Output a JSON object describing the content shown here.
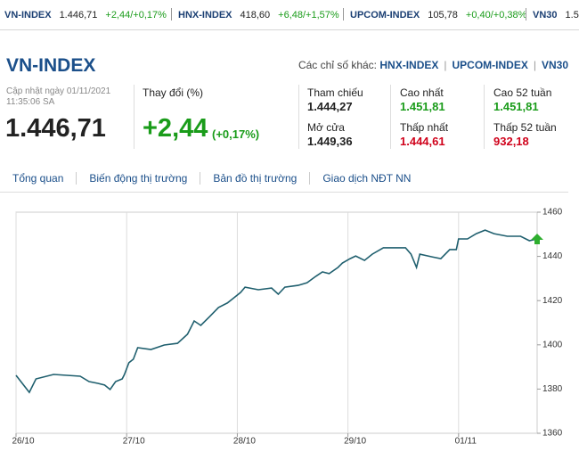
{
  "ticker": [
    {
      "name": "VN-INDEX",
      "value": "1.446,71",
      "change": "+2,44/+0,17%"
    },
    {
      "name": "HNX-INDEX",
      "value": "418,60",
      "change": "+6,48/+1,57%"
    },
    {
      "name": "UPCOM-INDEX",
      "value": "105,78",
      "change": "+0,40/+0,38%"
    },
    {
      "name": "VN30",
      "value": "1.5"
    }
  ],
  "header": {
    "title": "VN-INDEX",
    "other_label": "Các chỉ số khác:",
    "links": [
      "HNX-INDEX",
      "UPCOM-INDEX",
      "VN30"
    ]
  },
  "summary": {
    "updated": "Cập nhật ngày 01/11/2021",
    "time": "11:35:06 SA",
    "price": "1.446,71",
    "change_label": "Thay đổi (%)",
    "change": "+2,44",
    "change_pct": "(+0,17%)"
  },
  "stats": [
    {
      "label": "Tham chiếu",
      "value": "1.444,27",
      "color": "#222222"
    },
    {
      "label": "Mở cửa",
      "value": "1.449,36",
      "color": "#222222"
    },
    {
      "label": "Cao nhất",
      "value": "1.451,81",
      "color": "#1a9c1a"
    },
    {
      "label": "Thấp nhất",
      "value": "1.444,61",
      "color": "#d0021b"
    },
    {
      "label": "Cao 52 tuần",
      "value": "1.451,81",
      "color": "#1a9c1a"
    },
    {
      "label": "Thấp 52 tuần",
      "value": "932,18",
      "color": "#d0021b"
    }
  ],
  "tabs": [
    "Tổng quan",
    "Biến động thị trường",
    "Bản đồ thị trường",
    "Giao dịch NĐT NN"
  ],
  "chart_data": {
    "type": "line",
    "x": [
      0,
      0.12,
      0.18,
      0.34,
      0.58,
      0.66,
      0.74,
      0.8,
      0.85,
      0.9,
      0.96,
      0.98,
      1.02,
      1.06,
      1.1,
      1.22,
      1.34,
      1.46,
      1.55,
      1.61,
      1.67,
      1.75,
      1.83,
      1.91,
      1.96,
      2.03,
      2.07,
      2.19,
      2.31,
      2.37,
      2.43,
      2.55,
      2.63,
      2.71,
      2.77,
      2.83,
      2.91,
      2.95,
      3.02,
      3.07,
      3.15,
      3.22,
      3.32,
      3.44,
      3.52,
      3.57,
      3.62,
      3.65,
      3.76,
      3.84,
      3.92,
      3.98,
      4.0,
      4.08,
      4.16,
      4.24,
      4.32,
      4.44,
      4.56,
      4.64,
      4.71
    ],
    "series": [
      {
        "color": "#1f5f6e",
        "values": [
          1386.2,
          1378.5,
          1384.6,
          1386.6,
          1385.8,
          1383.4,
          1382.6,
          1381.8,
          1379.8,
          1383.4,
          1384.6,
          1386.6,
          1391.9,
          1393.5,
          1398.7,
          1397.9,
          1399.9,
          1400.7,
          1404.8,
          1410.8,
          1408.8,
          1412.8,
          1416.9,
          1418.9,
          1420.9,
          1423.7,
          1426.1,
          1424.9,
          1425.7,
          1422.9,
          1426.1,
          1426.9,
          1428.1,
          1431.0,
          1433.0,
          1432.2,
          1435.0,
          1437.0,
          1439.0,
          1440.2,
          1438.2,
          1441.0,
          1443.9,
          1443.9,
          1443.9,
          1441.0,
          1435.0,
          1441.0,
          1439.8,
          1439.0,
          1443.1,
          1443.1,
          1447.9,
          1447.9,
          1450.3,
          1451.9,
          1450.3,
          1449.1,
          1449.1,
          1447.1,
          1447.9
        ]
      }
    ],
    "xlim": [
      0,
      4.71
    ],
    "xticks": [
      {
        "value": 0,
        "label": "26/10"
      },
      {
        "value": 1,
        "label": "27/10"
      },
      {
        "value": 2,
        "label": "28/10"
      },
      {
        "value": 3,
        "label": "29/10"
      },
      {
        "value": 4,
        "label": "01/11"
      }
    ],
    "ylim": [
      1360,
      1460
    ],
    "yticks": [
      1360,
      1380,
      1400,
      1420,
      1440,
      1460
    ],
    "grid": "x"
  }
}
